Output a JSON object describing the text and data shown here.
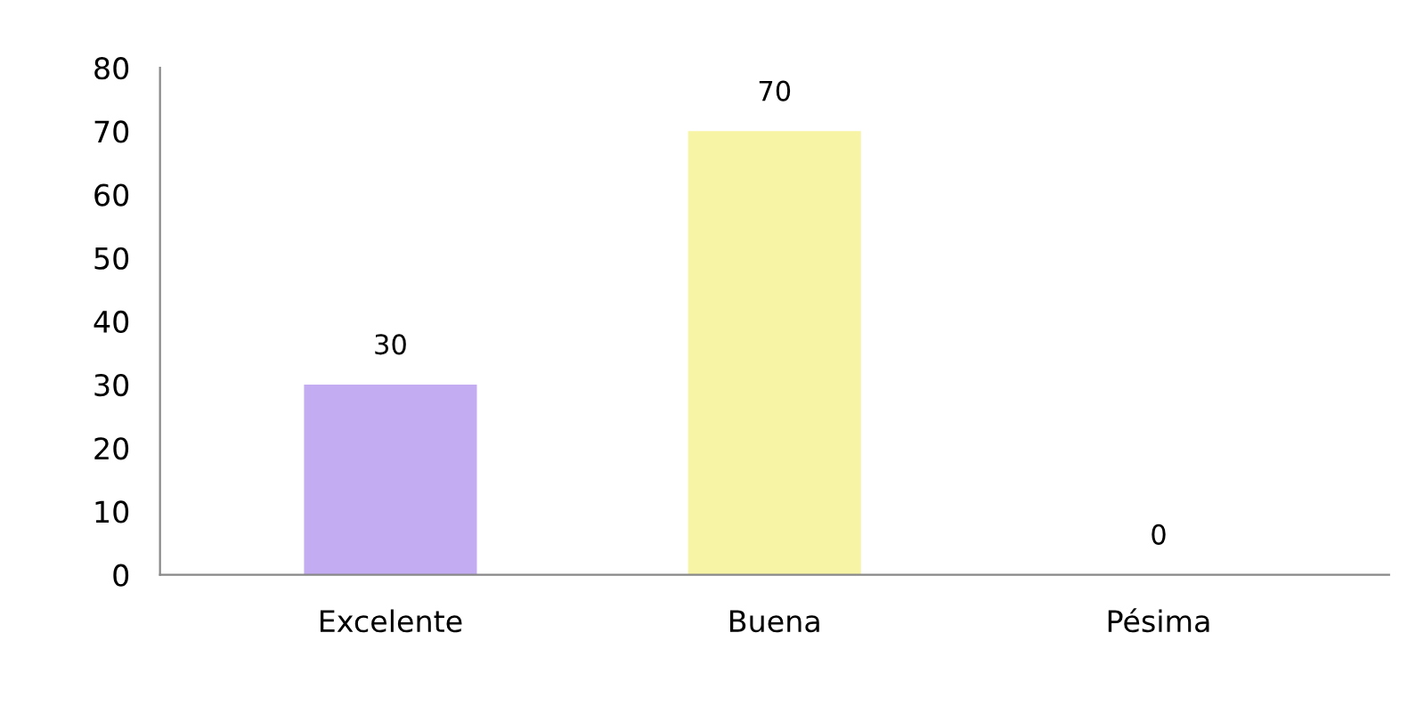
{
  "chart_data": {
    "type": "bar",
    "categories": [
      "Excelente",
      "Buena",
      "Pésima"
    ],
    "values": [
      30,
      70,
      0
    ],
    "colors": [
      "#c3acf2",
      "#f8f4a6",
      "#9dc3e6"
    ],
    "ylim": [
      0,
      80
    ],
    "yticks": [
      0,
      10,
      20,
      30,
      40,
      50,
      60,
      70,
      80
    ],
    "data_labels": true,
    "grid": false,
    "legend": false
  }
}
